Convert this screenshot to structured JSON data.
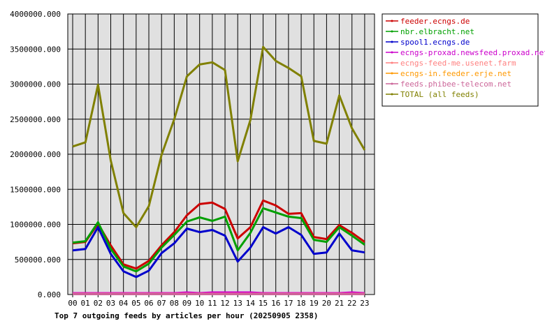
{
  "chart_data": {
    "type": "line",
    "title": "Top 7 outgoing feeds by articles per hour (20250905 2358)",
    "xlabel": "",
    "ylabel": "",
    "categories": [
      "00",
      "01",
      "02",
      "03",
      "04",
      "05",
      "06",
      "07",
      "08",
      "09",
      "10",
      "11",
      "12",
      "13",
      "14",
      "15",
      "16",
      "17",
      "18",
      "19",
      "20",
      "21",
      "22",
      "23"
    ],
    "ylim": [
      0,
      4000000
    ],
    "yticks": [
      "0.000",
      "500000.000",
      "1000000.000",
      "1500000.000",
      "2000000.000",
      "2500000.000",
      "3000000.000",
      "3500000.000",
      "4000000.000"
    ],
    "grid": true,
    "legend_position": "top-right",
    "series": [
      {
        "name": "feeder.ecngs.de",
        "color": "#cc0000",
        "values": [
          730000,
          750000,
          1010000,
          700000,
          430000,
          370000,
          480000,
          700000,
          890000,
          1130000,
          1290000,
          1310000,
          1220000,
          800000,
          960000,
          1340000,
          1270000,
          1150000,
          1160000,
          820000,
          790000,
          990000,
          880000,
          750000
        ]
      },
      {
        "name": "nbr.elbracht.net",
        "color": "#00a000",
        "values": [
          740000,
          760000,
          1030000,
          650000,
          400000,
          330000,
          440000,
          670000,
          850000,
          1040000,
          1100000,
          1050000,
          1110000,
          630000,
          880000,
          1230000,
          1170000,
          1110000,
          1090000,
          780000,
          750000,
          960000,
          840000,
          710000
        ]
      },
      {
        "name": "spool1.ecngs.de",
        "color": "#0000cc",
        "values": [
          630000,
          650000,
          960000,
          580000,
          330000,
          250000,
          340000,
          590000,
          730000,
          940000,
          890000,
          920000,
          840000,
          470000,
          670000,
          960000,
          870000,
          960000,
          850000,
          580000,
          600000,
          870000,
          630000,
          600000
        ]
      },
      {
        "name": "ecngs-proxad.newsfeed.proxad.net",
        "color": "#cc00cc",
        "values": [
          20000,
          20000,
          20000,
          20000,
          20000,
          20000,
          20000,
          20000,
          20000,
          30000,
          20000,
          30000,
          30000,
          30000,
          30000,
          20000,
          20000,
          20000,
          20000,
          20000,
          20000,
          20000,
          30000,
          20000
        ]
      },
      {
        "name": "ecngs-feed-me.usenet.farm",
        "color": "#ff8080",
        "values": [
          10000,
          10000,
          10000,
          10000,
          10000,
          10000,
          10000,
          10000,
          10000,
          10000,
          10000,
          10000,
          10000,
          10000,
          10000,
          10000,
          10000,
          10000,
          10000,
          10000,
          10000,
          10000,
          10000,
          10000
        ]
      },
      {
        "name": "ecngs-in.feeder.erje.net",
        "color": "#ff9900",
        "values": [
          5000,
          5000,
          5000,
          5000,
          5000,
          5000,
          5000,
          5000,
          5000,
          5000,
          5000,
          5000,
          5000,
          5000,
          5000,
          5000,
          5000,
          5000,
          5000,
          5000,
          5000,
          5000,
          5000,
          5000
        ]
      },
      {
        "name": "feeds.phibee-telecom.net",
        "color": "#cc6699",
        "values": [
          5000,
          5000,
          5000,
          5000,
          5000,
          5000,
          5000,
          5000,
          5000,
          5000,
          5000,
          5000,
          5000,
          5000,
          5000,
          5000,
          5000,
          5000,
          5000,
          5000,
          5000,
          5000,
          5000,
          5000
        ]
      },
      {
        "name": "TOTAL (all feeds)",
        "color": "#808000",
        "values": [
          2110000,
          2170000,
          2990000,
          1910000,
          1160000,
          960000,
          1260000,
          1990000,
          2500000,
          3110000,
          3280000,
          3310000,
          3200000,
          1900000,
          2490000,
          3530000,
          3330000,
          3230000,
          3110000,
          2190000,
          2150000,
          2840000,
          2370000,
          2060000
        ]
      }
    ]
  }
}
